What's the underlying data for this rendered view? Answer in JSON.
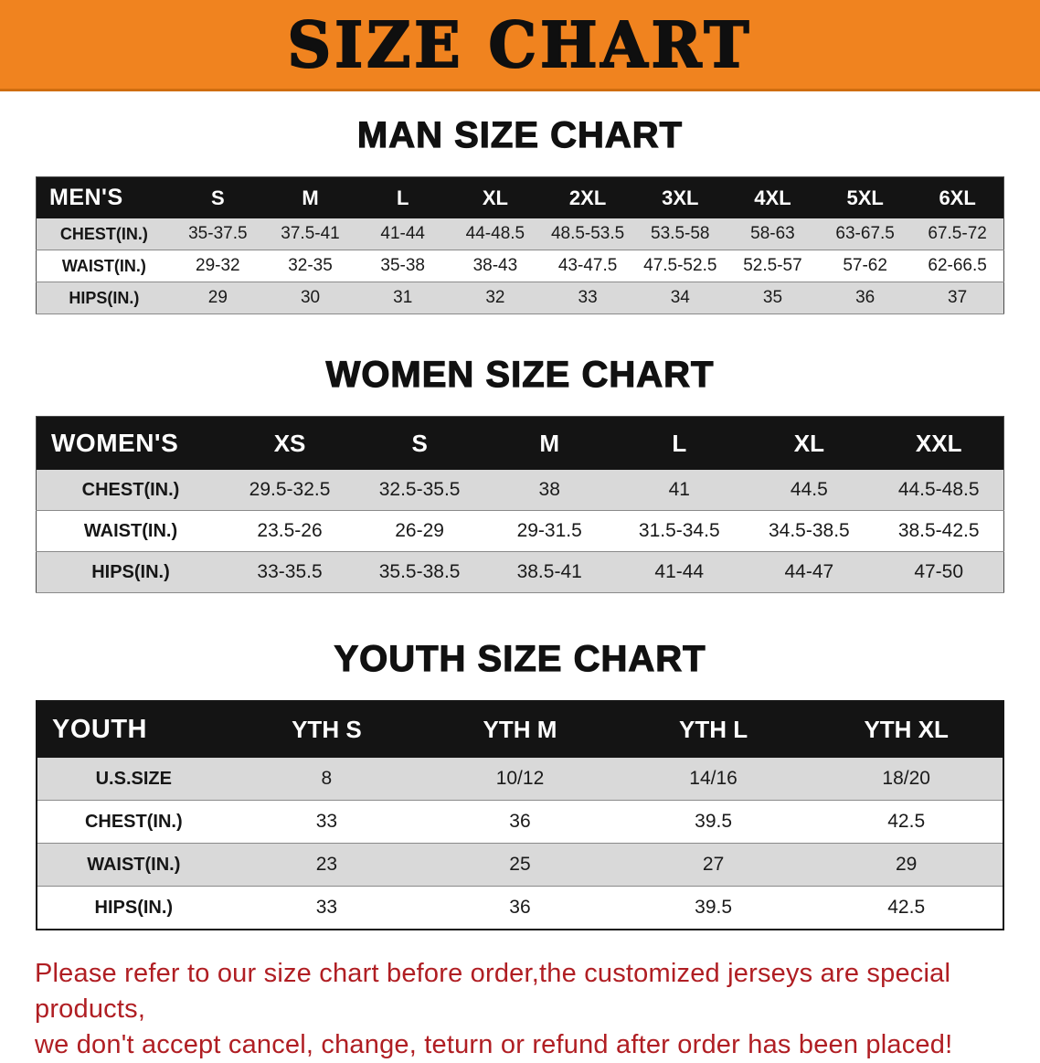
{
  "banner": {
    "title": "SIZE CHART"
  },
  "sections": [
    {
      "heading": "MAN SIZE CHART",
      "table_name": "mens-size-table",
      "columns": [
        "MEN'S",
        "S",
        "M",
        "L",
        "XL",
        "2XL",
        "3XL",
        "4XL",
        "5XL",
        "6XL"
      ],
      "rows": [
        [
          "CHEST(IN.)",
          "35-37.5",
          "37.5-41",
          "41-44",
          "44-48.5",
          "48.5-53.5",
          "53.5-58",
          "58-63",
          "63-67.5",
          "67.5-72"
        ],
        [
          "WAIST(IN.)",
          "29-32",
          "32-35",
          "35-38",
          "38-43",
          "43-47.5",
          "47.5-52.5",
          "52.5-57",
          "57-62",
          "62-66.5"
        ],
        [
          "HIPS(IN.)",
          "29",
          "30",
          "31",
          "32",
          "33",
          "34",
          "35",
          "36",
          "37"
        ]
      ]
    },
    {
      "heading": "WOMEN SIZE CHART",
      "table_name": "womens-size-table",
      "columns": [
        "WOMEN'S",
        "XS",
        "S",
        "M",
        "L",
        "XL",
        "XXL"
      ],
      "rows": [
        [
          "CHEST(IN.)",
          "29.5-32.5",
          "32.5-35.5",
          "38",
          "41",
          "44.5",
          "44.5-48.5"
        ],
        [
          "WAIST(IN.)",
          "23.5-26",
          "26-29",
          "29-31.5",
          "31.5-34.5",
          "34.5-38.5",
          "38.5-42.5"
        ],
        [
          "HIPS(IN.)",
          "33-35.5",
          "35.5-38.5",
          "38.5-41",
          "41-44",
          "44-47",
          "47-50"
        ]
      ]
    },
    {
      "heading": "YOUTH SIZE CHART",
      "table_name": "youth-size-table",
      "columns": [
        "YOUTH",
        "YTH S",
        "YTH M",
        "YTH L",
        "YTH XL"
      ],
      "rows": [
        [
          "U.S.SIZE",
          "8",
          "10/12",
          "14/16",
          "18/20"
        ],
        [
          "CHEST(IN.)",
          "33",
          "36",
          "39.5",
          "42.5"
        ],
        [
          "WAIST(IN.)",
          "23",
          "25",
          "27",
          "29"
        ],
        [
          "HIPS(IN.)",
          "33",
          "36",
          "39.5",
          "42.5"
        ]
      ]
    }
  ],
  "disclaimer": {
    "line1": "Please refer to our size chart before order,the customized jerseys are special products,",
    "line2": "we don't accept cancel, change, teturn or refund after order has been placed!"
  },
  "colors": {
    "banner_bg": "#F0831F",
    "header_bg": "#141414",
    "row_alt_bg": "#D9D9D9",
    "disclaimer_text": "#B01E23"
  }
}
